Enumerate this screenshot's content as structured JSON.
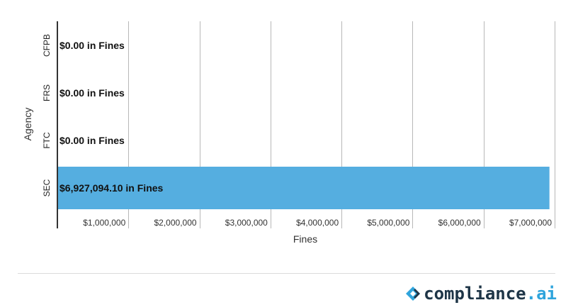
{
  "chart_data": {
    "type": "bar",
    "orientation": "horizontal",
    "categories": [
      "CFPB",
      "FRS",
      "FTC",
      "SEC"
    ],
    "values": [
      0.0,
      0.0,
      0.0,
      6927094.1
    ],
    "data_labels": [
      "$0.00 in Fines",
      "$0.00 in Fines",
      "$0.00 in Fines",
      "$6,927,094.10 in Fines"
    ],
    "xlabel": "Fines",
    "ylabel": "Agency",
    "xlim": [
      0,
      7000000
    ],
    "xticks": [
      1000000,
      2000000,
      3000000,
      4000000,
      5000000,
      6000000,
      7000000
    ],
    "xtick_labels": [
      "$1,000,000",
      "$2,000,000",
      "$3,000,000",
      "$4,000,000",
      "$5,000,000",
      "$6,000,000",
      "$7,000,000"
    ],
    "grid": true,
    "bar_color": "#55aee0",
    "gridline_color": "#b8b8b8"
  },
  "branding": {
    "logo_name": "compliance",
    "logo_suffix": ".ai",
    "logo_icon": "compliance-ai-logo-icon",
    "brand_color": "#1e3547",
    "accent_color": "#2fa4dc"
  }
}
